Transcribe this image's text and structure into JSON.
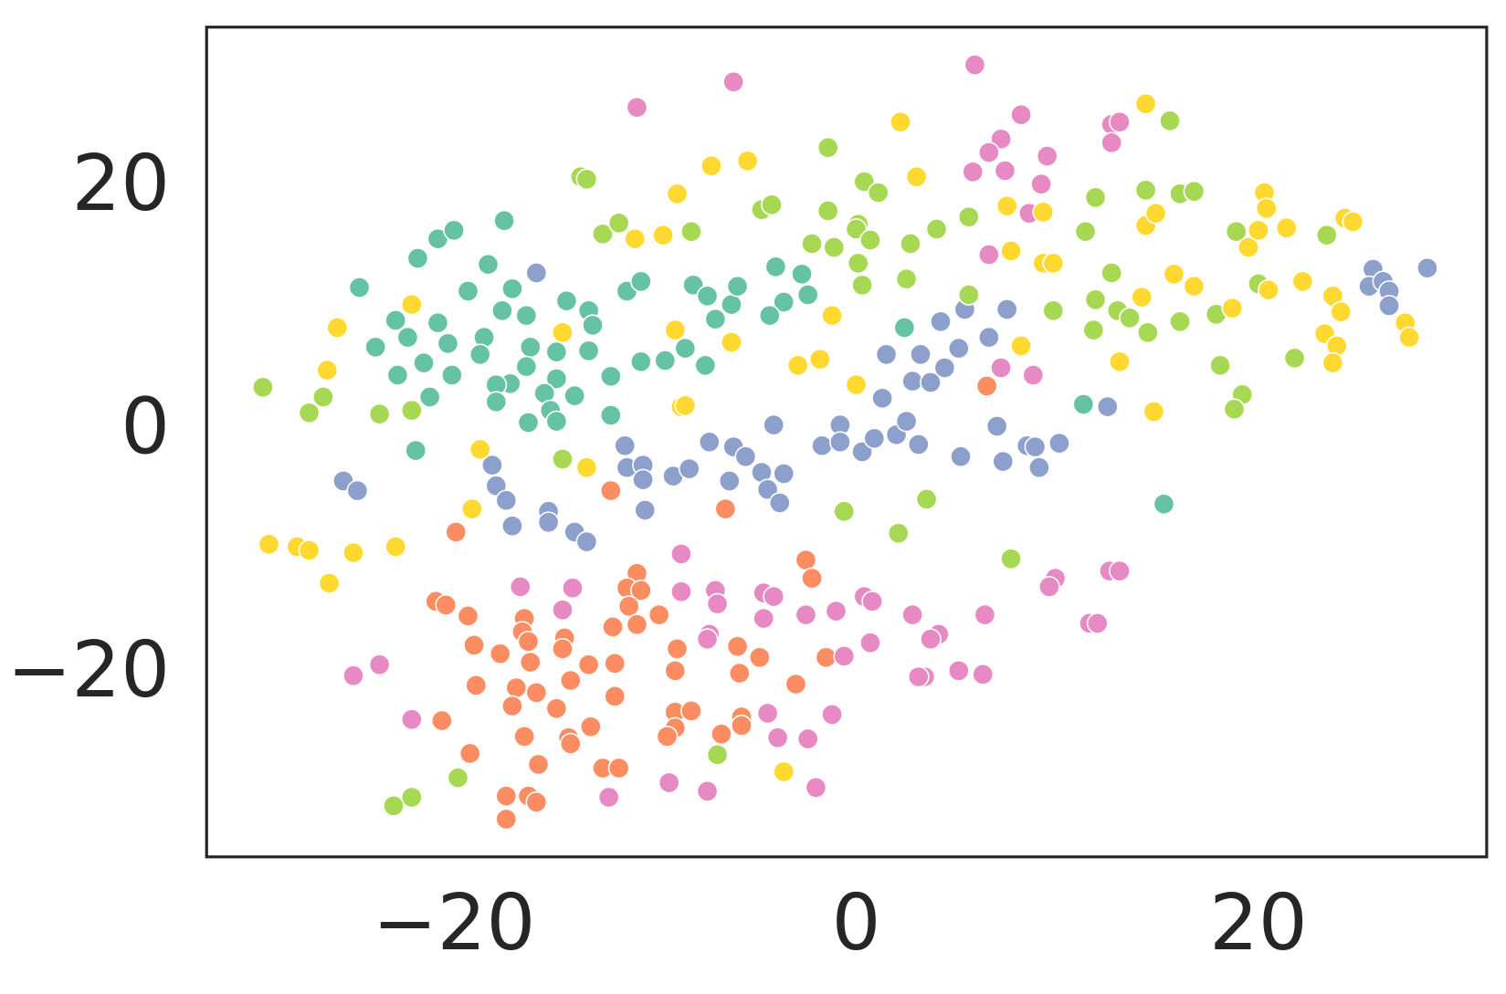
{
  "chart_data": {
    "type": "scatter",
    "xlim": [
      -32.3,
      31.35
    ],
    "ylim": [
      -34.9,
      33.3
    ],
    "xticks": [
      {
        "value": -20,
        "label": "−20"
      },
      0,
      20
    ],
    "yticks": [
      {
        "value": -20,
        "label": "−20"
      },
      0,
      20
    ],
    "grid": false,
    "series": [
      {
        "color": "#66c2a5",
        "x": [
          -24.7,
          -21.8,
          -20.8,
          -20.0,
          -17.5,
          -18.3,
          -19.3,
          -17.1,
          -22.9,
          -20.8,
          -22.3,
          -23.9,
          -20.3,
          -18.5,
          -17.6,
          -16.4,
          -14.4,
          -13.3,
          -13.1,
          -16.2,
          -14.9,
          -13.3,
          -18.7,
          -21.5,
          -16.4,
          -22.8,
          -20.1,
          -14.9,
          -12.2,
          -17.2,
          -17.9,
          -15.5,
          -14.0,
          -17.9,
          -21.2,
          -15.2,
          -14.9,
          -16.3,
          -12.2,
          -21.9,
          -11.4,
          -10.7,
          -10.7,
          -9.5,
          -8.5,
          -7.5,
          -8.1,
          -7.4,
          -7.0,
          -6.2,
          -5.9,
          -4.0,
          -2.7,
          -2.4,
          -3.6,
          -4.3,
          2.4,
          11.3,
          15.3
        ],
        "y": [
          11.9,
          14.3,
          15.9,
          16.6,
          17.4,
          13.8,
          11.6,
          11.8,
          9.2,
          9.0,
          7.8,
          7.0,
          7.3,
          7.8,
          10.0,
          9.6,
          10.8,
          10.0,
          8.8,
          7.0,
          6.6,
          6.7,
          6.4,
          5.7,
          5.4,
          4.7,
          4.7,
          4.4,
          4.6,
          4.0,
          3.9,
          3.2,
          3.0,
          2.5,
          2.9,
          1.8,
          0.9,
          0.8,
          1.4,
          -1.5,
          11.6,
          12.4,
          5.8,
          5.9,
          6.9,
          5.5,
          12.1,
          11.2,
          9.3,
          10.5,
          12.0,
          13.6,
          13.0,
          11.3,
          10.7,
          9.6,
          8.6,
          2.3,
          -5.9
        ]
      },
      {
        "color": "#fc8d62",
        "x": [
          -19.9,
          -12.2,
          -6.5,
          6.5,
          -2.5,
          -2.2,
          -1.5,
          -10.9,
          -11.4,
          -10.7,
          -11.3,
          -9.8,
          -12.1,
          -10.9,
          -20.9,
          -20.4,
          -19.3,
          -16.5,
          -16.6,
          -16.3,
          -14.5,
          -14.6,
          -19.0,
          -17.7,
          -16.2,
          -13.3,
          -12.0,
          -14.2,
          -18.9,
          -16.9,
          -15.9,
          -12.0,
          -17.1,
          -14.9,
          -20.6,
          -16.5,
          -14.3,
          -14.2,
          -13.2,
          -19.2,
          -15.8,
          -12.6,
          -11.8,
          -17.4,
          -16.3,
          -15.9,
          -17.4,
          -8.9,
          -9.0,
          -9.0,
          -8.2,
          -9.0,
          -9.4,
          -6.7,
          -5.9,
          -5.8,
          -4.8,
          -5.7,
          -5.7,
          -3.0
        ],
        "y": [
          -8.2,
          -4.8,
          -6.3,
          3.8,
          -10.5,
          -12.0,
          -18.5,
          -11.6,
          -12.8,
          -13.0,
          -14.3,
          -15.0,
          -16.0,
          -15.8,
          -13.9,
          -14.2,
          -15.1,
          -15.3,
          -16.4,
          -17.2,
          -16.9,
          -17.8,
          -17.5,
          -18.2,
          -18.9,
          -19.1,
          -19.0,
          -20.4,
          -20.8,
          -21.0,
          -21.4,
          -21.7,
          -22.5,
          -22.7,
          -23.7,
          -25.0,
          -25.1,
          -25.6,
          -24.2,
          -26.4,
          -27.3,
          -27.6,
          -27.6,
          -29.9,
          -29.9,
          -30.4,
          -31.8,
          -17.8,
          -19.6,
          -23.0,
          -22.9,
          -24.3,
          -25.0,
          -24.8,
          -17.6,
          -19.8,
          -18.5,
          -23.4,
          -24.1,
          -20.7
        ]
      },
      {
        "color": "#8da0cb",
        "x": [
          -25.5,
          -24.8,
          -15.9,
          -18.1,
          -17.9,
          -17.4,
          -17.1,
          -15.3,
          -15.3,
          -14.0,
          -13.4,
          -11.5,
          -11.4,
          -10.6,
          -10.6,
          -10.5,
          -9.1,
          -8.3,
          -7.3,
          -6.3,
          -6.1,
          -5.5,
          -4.7,
          -4.4,
          -3.8,
          -3.6,
          -4.1,
          -1.7,
          -0.8,
          -0.8,
          0.3,
          0.9,
          2.0,
          2.5,
          3.1,
          1.3,
          1.5,
          2.8,
          3.2,
          3.7,
          4.4,
          4.2,
          5.1,
          5.4,
          6.6,
          7.5,
          5.2,
          7.0,
          7.3,
          8.5,
          8.9,
          9.1,
          10.1,
          12.5,
          25.7,
          25.5,
          26.2,
          26.5,
          26.5,
          28.4
        ],
        "y": [
          -4.0,
          -4.8,
          13.1,
          -2.7,
          -4.4,
          -5.6,
          -7.7,
          -6.5,
          -7.4,
          -8.2,
          -9.0,
          -1.1,
          -2.9,
          -2.7,
          -3.9,
          -6.4,
          -3.6,
          -3.0,
          -0.8,
          -4.0,
          -1.2,
          -2.0,
          -3.3,
          -4.7,
          -5.8,
          -3.4,
          0.6,
          -1.1,
          0.6,
          -0.8,
          -1.6,
          -0.5,
          -0.2,
          0.9,
          -1.0,
          2.8,
          6.4,
          4.2,
          6.4,
          4.1,
          5.3,
          9.1,
          6.9,
          10.1,
          7.8,
          10.1,
          -2.0,
          0.5,
          -2.4,
          -1.1,
          -1.2,
          -2.9,
          -0.9,
          2.1,
          13.4,
          12.0,
          12.4,
          11.6,
          10.4,
          13.5
        ]
      },
      {
        "color": "#e78ac3",
        "x": [
          -6.1,
          -10.9,
          5.9,
          8.2,
          7.2,
          6.6,
          7.4,
          5.8,
          9.5,
          9.2,
          8.6,
          12.7,
          13.1,
          12.7,
          6.6,
          7.2,
          8.8,
          -8.7,
          -16.7,
          -14.1,
          -14.6,
          -8.7,
          -7.0,
          -6.9,
          -4.6,
          -4.1,
          -4.6,
          -2.5,
          -1.0,
          0.4,
          0.8,
          2.8,
          4.1,
          3.7,
          6.4,
          0.7,
          -0.6,
          -7.3,
          -7.4,
          3.4,
          3.1,
          5.1,
          6.3,
          -25.0,
          -23.7,
          -22.1,
          -4.4,
          -3.9,
          -2.4,
          -1.2,
          -9.3,
          -7.4,
          -2.0,
          -12.3,
          9.9,
          9.6,
          12.6,
          13.1,
          11.6,
          12.0
        ],
        "y": [
          28.8,
          26.7,
          30.2,
          26.1,
          24.1,
          23.0,
          21.5,
          21.4,
          22.7,
          20.4,
          18.0,
          25.3,
          25.5,
          23.8,
          14.6,
          5.3,
          4.7,
          -10.0,
          -12.7,
          -12.8,
          -14.6,
          -13.1,
          -13.0,
          -14.1,
          -13.2,
          -13.5,
          -15.3,
          -15.0,
          -14.7,
          -13.5,
          -13.9,
          -15.0,
          -16.6,
          -17.0,
          -15.0,
          -17.3,
          -18.4,
          -16.6,
          -17.0,
          -20.1,
          -20.1,
          -19.6,
          -19.9,
          -20.0,
          -19.1,
          -23.6,
          -23.1,
          -25.1,
          -25.2,
          -23.2,
          -28.8,
          -29.5,
          -29.2,
          -30.0,
          -12.0,
          -12.7,
          -11.4,
          -11.4,
          -15.7,
          -15.7
        ]
      },
      {
        "color": "#a6d854",
        "x": [
          -29.5,
          -26.5,
          -27.2,
          -23.7,
          -22.1,
          -14.6,
          -13.7,
          -13.4,
          -12.6,
          -11.8,
          -8.2,
          -4.7,
          -4.2,
          -1.4,
          -1.4,
          -1.1,
          -2.2,
          0.1,
          0.0,
          0.7,
          0.1,
          0.3,
          0.4,
          1.1,
          2.7,
          2.5,
          4.0,
          5.6,
          5.6,
          9.8,
          11.4,
          11.9,
          12.7,
          11.9,
          11.8,
          13.0,
          13.6,
          14.5,
          14.4,
          15.6,
          16.1,
          16.8,
          16.1,
          17.9,
          18.1,
          18.9,
          20.0,
          19.2,
          18.8,
          21.8,
          23.4,
          -0.6,
          3.5,
          2.1,
          7.7,
          -6.9,
          -19.8,
          -22.1,
          -23.0
        ],
        "y": [
          3.7,
          2.9,
          1.6,
          1.5,
          1.8,
          -2.2,
          21.0,
          20.8,
          16.3,
          17.2,
          16.5,
          18.3,
          18.7,
          23.4,
          18.2,
          15.2,
          15.5,
          17.1,
          16.7,
          15.8,
          13.9,
          12.1,
          20.6,
          19.7,
          15.5,
          12.6,
          16.7,
          17.7,
          11.3,
          10.0,
          16.5,
          19.3,
          13.1,
          10.9,
          8.4,
          10.0,
          9.4,
          8.2,
          19.9,
          25.6,
          19.6,
          19.8,
          9.1,
          9.7,
          5.5,
          16.5,
          12.2,
          3.1,
          1.9,
          6.1,
          16.2,
          -6.5,
          -5.5,
          -8.3,
          -10.4,
          -26.5,
          -28.4,
          -30.0,
          -30.7
        ]
      },
      {
        "color": "#ffd92f",
        "x": [
          -25.8,
          -26.3,
          -22.1,
          -29.2,
          -27.8,
          -27.2,
          -25.0,
          -22.9,
          -26.2,
          -18.7,
          -19.1,
          -13.4,
          -14.6,
          -11.0,
          -9.6,
          -8.9,
          -7.2,
          -5.4,
          -9.0,
          -8.7,
          -8.5,
          -6.2,
          -2.9,
          -1.8,
          -1.2,
          0.0,
          2.2,
          3.0,
          7.5,
          7.7,
          8.2,
          9.3,
          9.3,
          9.8,
          13.1,
          14.2,
          14.4,
          14.4,
          14.9,
          14.8,
          15.8,
          16.8,
          18.7,
          19.5,
          20.0,
          20.3,
          20.4,
          20.5,
          21.4,
          22.2,
          23.3,
          23.7,
          24.1,
          23.9,
          23.7,
          24.3,
          24.7,
          27.3,
          27.5,
          -3.6
        ],
        "y": [
          8.6,
          5.1,
          10.5,
          -9.2,
          -9.4,
          -9.7,
          -9.9,
          -9.4,
          -12.4,
          -1.4,
          -6.3,
          -2.9,
          8.2,
          15.9,
          16.2,
          19.6,
          21.9,
          22.3,
          8.4,
          2.1,
          2.2,
          7.4,
          5.5,
          6.0,
          9.6,
          3.9,
          25.5,
          21.0,
          18.6,
          14.9,
          7.1,
          18.1,
          13.9,
          13.9,
          5.8,
          11.1,
          27.0,
          17.0,
          18.0,
          1.7,
          13.0,
          12.0,
          10.2,
          15.2,
          16.6,
          19.7,
          18.4,
          11.7,
          16.8,
          12.4,
          8.1,
          11.2,
          9.9,
          7.1,
          5.7,
          17.6,
          17.3,
          9.0,
          7.8,
          -27.9
        ]
      }
    ]
  }
}
